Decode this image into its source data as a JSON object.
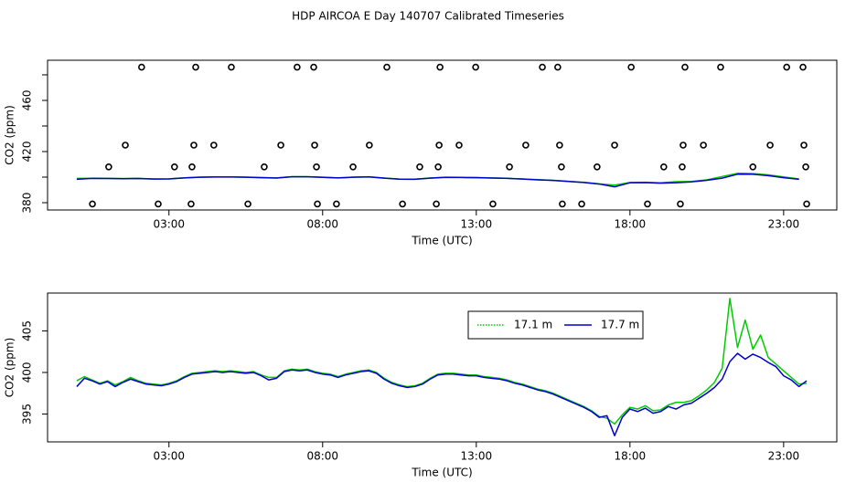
{
  "chart_data": [
    {
      "type": "line",
      "title": "HDP AIRCOA E  Day 140707  Calibrated Timeseries",
      "xlabel": "Time (UTC)",
      "ylabel": "CO2 (ppm)",
      "xlim": [
        -0.95,
        24.73
      ],
      "ylim": [
        374.3,
        491.4
      ],
      "xticks": [
        {
          "value": 3,
          "label": "03:00"
        },
        {
          "value": 8,
          "label": "08:00"
        },
        {
          "value": 13,
          "label": "13:00"
        },
        {
          "value": 18,
          "label": "18:00"
        },
        {
          "value": 23,
          "label": "23:00"
        }
      ],
      "yticks": [
        380,
        420,
        460
      ],
      "yticks_minor": [
        400,
        440,
        480
      ],
      "x": [
        0,
        0.5,
        1,
        1.5,
        2,
        2.5,
        3,
        3.5,
        4,
        4.5,
        5,
        5.5,
        6,
        6.5,
        7,
        7.5,
        8,
        8.5,
        9,
        9.5,
        10,
        10.5,
        11,
        11.5,
        12,
        12.5,
        13,
        13.5,
        14,
        14.5,
        15,
        15.5,
        16,
        16.5,
        17,
        17.5,
        18,
        18.5,
        19,
        19.5,
        20,
        20.5,
        21,
        21.5,
        22,
        22.5,
        23,
        23.5
      ],
      "series": [
        {
          "type": "line",
          "color": "#00cc00",
          "values": [
            399.0,
            399.1,
            399.0,
            398.9,
            399.0,
            398.6,
            398.7,
            399.5,
            400.0,
            400.2,
            400.2,
            400.0,
            399.7,
            399.4,
            400.4,
            400.4,
            399.9,
            399.5,
            400.0,
            400.3,
            399.3,
            398.5,
            398.4,
            399.3,
            399.9,
            399.8,
            399.7,
            399.4,
            399.1,
            398.6,
            398.0,
            397.5,
            396.7,
            395.9,
            394.7,
            393.8,
            395.8,
            396.0,
            395.5,
            396.4,
            396.6,
            397.9,
            400.5,
            403.0,
            402.8,
            401.8,
            400.2,
            398.6
          ]
        },
        {
          "type": "line",
          "color": "#0000cc",
          "values": [
            398.3,
            399.0,
            398.9,
            398.8,
            398.9,
            398.5,
            398.6,
            399.4,
            399.9,
            400.1,
            400.1,
            399.9,
            399.6,
            399.3,
            400.3,
            400.3,
            399.8,
            399.4,
            399.9,
            400.2,
            399.2,
            398.4,
            398.3,
            399.2,
            399.8,
            399.7,
            399.6,
            399.3,
            399.0,
            398.5,
            397.9,
            397.4,
            396.6,
            395.8,
            394.6,
            392.4,
            395.6,
            395.7,
            395.3,
            395.6,
            396.3,
            397.5,
            399.2,
            402.3,
            402.2,
            401.2,
            399.6,
            398.3
          ]
        },
        {
          "type": "scatter",
          "color": "#000000",
          "x": [
            0.51,
            2.65,
            3.72,
            5.57,
            7.83,
            8.45,
            10.6,
            11.7,
            13.54,
            15.8,
            16.43,
            18.57,
            19.64,
            23.75,
            1.04,
            3.18,
            3.75,
            6.1,
            7.8,
            8.99,
            11.16,
            11.76,
            14.08,
            15.77,
            16.93,
            19.1,
            19.7,
            22.0,
            23.72,
            1.58,
            3.81,
            4.46,
            6.64,
            7.74,
            9.52,
            11.79,
            12.44,
            14.61,
            15.71,
            17.5,
            19.73,
            20.39,
            22.56,
            23.66,
            2.11,
            3.87,
            5.03,
            7.17,
            7.71,
            10.09,
            11.82,
            12.98,
            15.15,
            15.65,
            18.04,
            19.79,
            20.95,
            23.1,
            23.63
          ],
          "values": [
            379,
            379,
            379,
            379,
            379,
            379,
            379,
            379,
            379,
            379,
            379,
            379,
            379,
            379,
            408,
            408,
            408,
            408,
            408,
            408,
            408,
            408,
            408,
            408,
            408,
            408,
            408,
            408,
            408,
            425,
            425,
            425,
            425,
            425,
            425,
            425,
            425,
            425,
            425,
            425,
            425,
            425,
            425,
            425,
            486,
            486,
            486,
            486,
            486,
            486,
            486,
            486,
            486,
            486,
            486,
            486,
            486,
            486,
            486
          ]
        }
      ]
    },
    {
      "type": "line",
      "xlabel": "Time (UTC)",
      "ylabel": "CO2 (ppm)",
      "xlim": [
        -0.95,
        24.73
      ],
      "ylim": [
        391.65,
        409.55
      ],
      "xticks": [
        {
          "value": 3,
          "label": "03:00"
        },
        {
          "value": 8,
          "label": "08:00"
        },
        {
          "value": 13,
          "label": "13:00"
        },
        {
          "value": 18,
          "label": "18:00"
        },
        {
          "value": 23,
          "label": "23:00"
        }
      ],
      "yticks": [
        395,
        400,
        405
      ],
      "legend": "top-right",
      "x": [
        0,
        0.25,
        0.5,
        0.75,
        1,
        1.25,
        1.5,
        1.75,
        2,
        2.25,
        2.5,
        2.75,
        3,
        3.25,
        3.5,
        3.75,
        4,
        4.25,
        4.5,
        4.75,
        5,
        5.25,
        5.5,
        5.75,
        6,
        6.25,
        6.5,
        6.75,
        7,
        7.25,
        7.5,
        7.75,
        8,
        8.25,
        8.5,
        8.75,
        9,
        9.25,
        9.5,
        9.75,
        10,
        10.25,
        10.5,
        10.75,
        11,
        11.25,
        11.5,
        11.75,
        12,
        12.25,
        12.5,
        12.75,
        13,
        13.25,
        13.5,
        13.75,
        14,
        14.25,
        14.5,
        14.75,
        15,
        15.25,
        15.5,
        15.75,
        16,
        16.25,
        16.5,
        16.75,
        17,
        17.25,
        17.5,
        17.75,
        18,
        18.25,
        18.5,
        18.75,
        19,
        19.25,
        19.5,
        19.75,
        20,
        20.25,
        20.5,
        20.75,
        21,
        21.25,
        21.5,
        21.75,
        22,
        22.25,
        22.5,
        22.75,
        23,
        23.25,
        23.5,
        23.75
      ],
      "series": [
        {
          "name": "17.1 m",
          "color": "#00cc00",
          "values": [
            399.0,
            399.5,
            399.1,
            398.7,
            399.0,
            398.5,
            398.9,
            399.4,
            399.0,
            398.7,
            398.6,
            398.5,
            398.7,
            399.0,
            399.5,
            399.9,
            400.0,
            400.1,
            400.2,
            400.1,
            400.2,
            400.1,
            400.0,
            400.1,
            399.7,
            399.4,
            399.4,
            400.2,
            400.4,
            400.3,
            400.4,
            400.1,
            399.9,
            399.8,
            399.5,
            399.8,
            400.0,
            400.2,
            400.3,
            400.0,
            399.3,
            398.8,
            398.5,
            398.3,
            398.4,
            398.7,
            399.3,
            399.8,
            399.9,
            399.9,
            399.8,
            399.7,
            399.7,
            399.5,
            399.4,
            399.3,
            399.1,
            398.8,
            398.6,
            398.3,
            398.0,
            397.8,
            397.5,
            397.1,
            396.7,
            396.3,
            395.9,
            395.4,
            394.7,
            394.5,
            393.8,
            394.9,
            395.8,
            395.6,
            396.0,
            395.4,
            395.5,
            396.1,
            396.4,
            396.4,
            396.6,
            397.2,
            397.9,
            398.8,
            400.5,
            408.9,
            403.0,
            406.3,
            402.8,
            404.5,
            401.8,
            401.0,
            400.2,
            399.4,
            398.6,
            398.7
          ]
        },
        {
          "name": "17.7 m",
          "color": "#0000cc",
          "values": [
            398.3,
            399.3,
            399.0,
            398.6,
            398.9,
            398.3,
            398.8,
            399.2,
            398.9,
            398.6,
            398.5,
            398.4,
            398.6,
            398.9,
            399.4,
            399.8,
            399.9,
            400.0,
            400.1,
            400.0,
            400.1,
            400.0,
            399.9,
            400.0,
            399.6,
            399.1,
            399.3,
            400.1,
            400.3,
            400.2,
            400.3,
            400.0,
            399.8,
            399.7,
            399.4,
            399.7,
            399.9,
            400.1,
            400.2,
            399.9,
            399.2,
            398.7,
            398.4,
            398.2,
            398.3,
            398.6,
            399.2,
            399.7,
            399.8,
            399.8,
            399.7,
            399.6,
            399.6,
            399.4,
            399.3,
            399.2,
            399.0,
            398.7,
            398.5,
            398.2,
            397.9,
            397.7,
            397.4,
            397.0,
            396.6,
            396.2,
            395.8,
            395.3,
            394.6,
            394.8,
            392.4,
            394.6,
            395.6,
            395.3,
            395.7,
            395.1,
            395.3,
            395.9,
            395.6,
            396.1,
            396.3,
            396.9,
            397.5,
            398.2,
            399.2,
            401.3,
            402.3,
            401.6,
            402.2,
            401.8,
            401.2,
            400.7,
            399.6,
            399.1,
            398.3,
            399.0
          ]
        }
      ]
    }
  ]
}
